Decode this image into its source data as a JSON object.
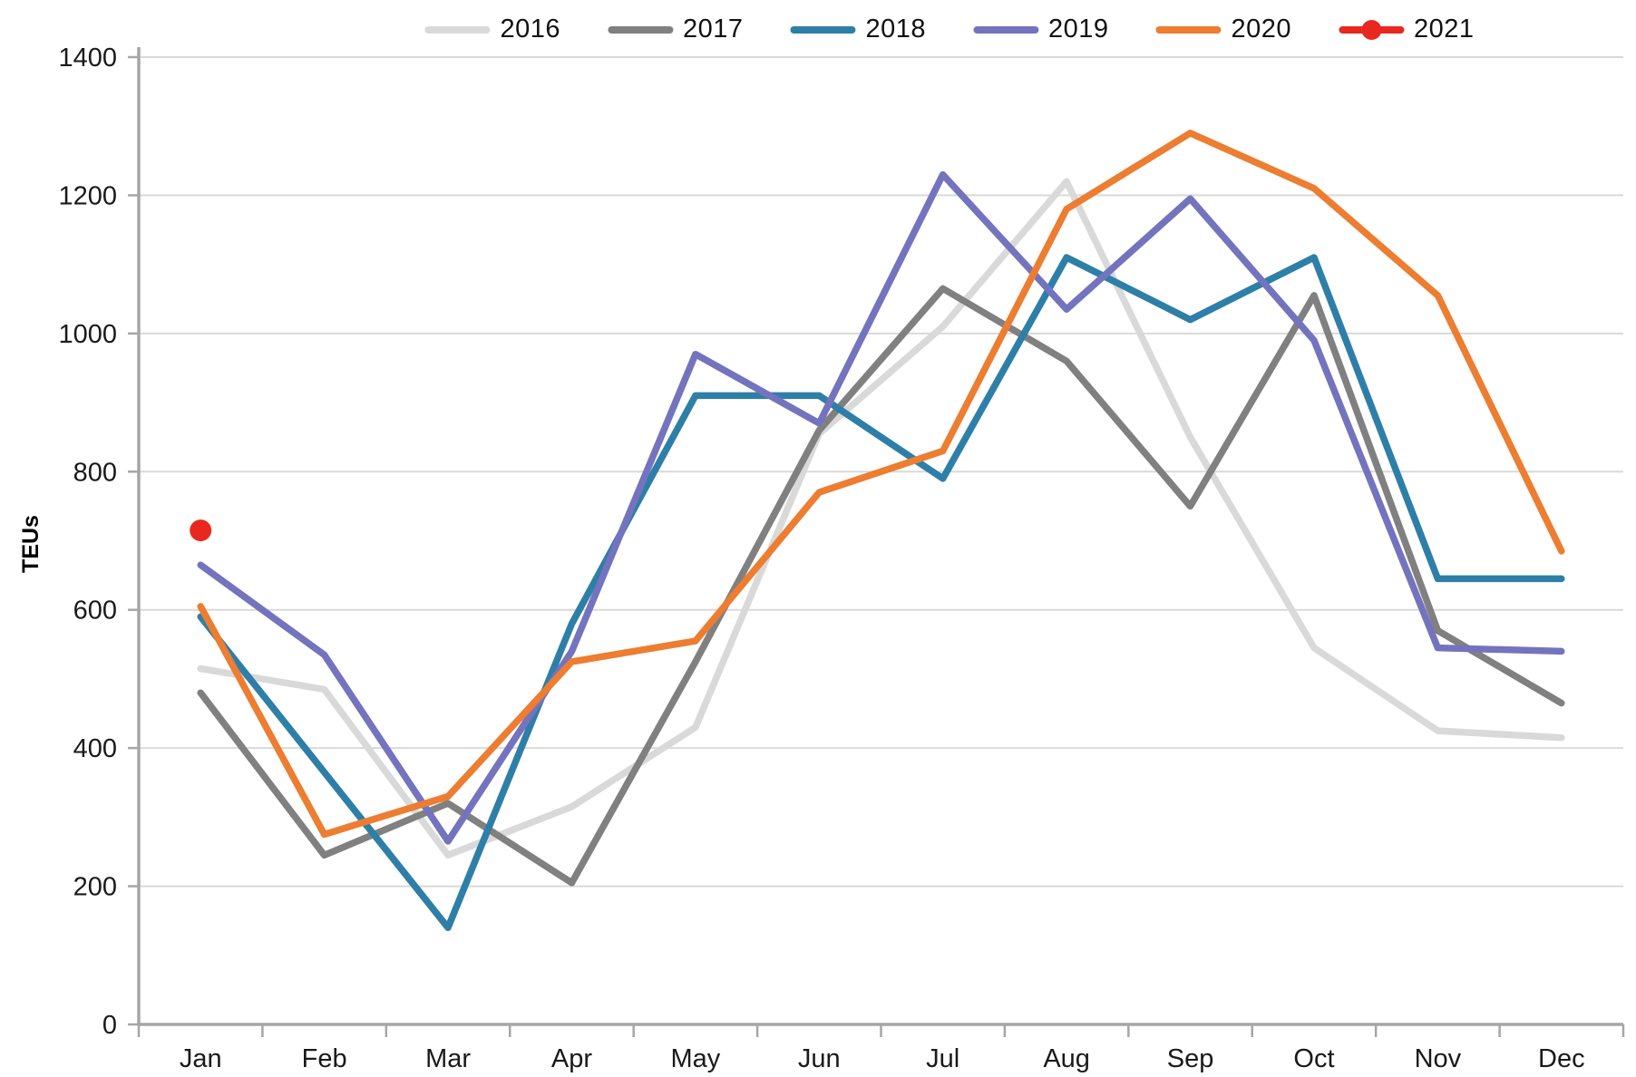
{
  "chart_data": {
    "type": "line",
    "title": "",
    "ylabel": "TEUs",
    "xlabel": "",
    "legend_position": "top",
    "grid": true,
    "categories": [
      "Jan",
      "Feb",
      "Mar",
      "Apr",
      "May",
      "Jun",
      "Jul",
      "Aug",
      "Sep",
      "Oct",
      "Nov",
      "Dec"
    ],
    "y_axis": {
      "min": 0,
      "max": 1400,
      "step": 200
    },
    "y_tick_labels": [
      "0",
      "200",
      "400",
      "600",
      "800",
      "1000",
      "1200",
      "1400"
    ],
    "series": [
      {
        "name": "2016",
        "color": "#D9D9D9",
        "marker": false,
        "values": [
          515,
          485,
          245,
          315,
          430,
          855,
          1010,
          1220,
          850,
          545,
          425,
          415
        ]
      },
      {
        "name": "2017",
        "color": "#808080",
        "marker": false,
        "values": [
          480,
          245,
          320,
          205,
          525,
          860,
          1065,
          960,
          750,
          1055,
          570,
          465
        ]
      },
      {
        "name": "2018",
        "color": "#2E7FA8",
        "marker": false,
        "values": [
          590,
          365,
          140,
          580,
          910,
          910,
          790,
          1110,
          1020,
          1110,
          645,
          645
        ]
      },
      {
        "name": "2019",
        "color": "#7473BE",
        "marker": false,
        "values": [
          665,
          535,
          265,
          540,
          970,
          870,
          1230,
          1035,
          1195,
          990,
          545,
          540
        ]
      },
      {
        "name": "2020",
        "color": "#ED7D31",
        "marker": false,
        "values": [
          605,
          275,
          330,
          525,
          555,
          770,
          830,
          1180,
          1290,
          1210,
          1055,
          685
        ]
      },
      {
        "name": "2021",
        "color": "#E8281E",
        "marker": true,
        "values": [
          715,
          null,
          null,
          null,
          null,
          null,
          null,
          null,
          null,
          null,
          null,
          null
        ]
      }
    ],
    "style": {
      "axis_color": "#A6A6A6",
      "gridline_color": "#D9D9D9",
      "tick_label_color": "#1A1A1A",
      "line_width": 7.5,
      "marker_radius": 12
    }
  }
}
